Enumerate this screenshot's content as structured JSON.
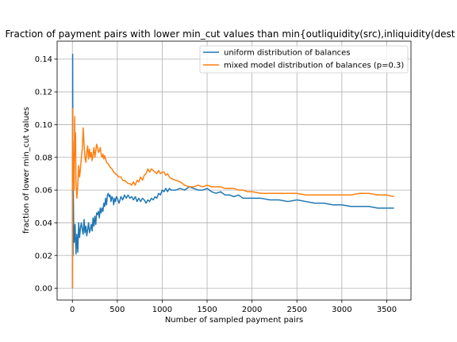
{
  "chart_data": {
    "type": "line",
    "title": "Fraction of payment pairs with lower min_cut values than min{outliquidity(src),inliquidity(dest",
    "xlabel": "Number of sampled payment pairs",
    "ylabel": "fraction of lower min_cut values",
    "xlim": [
      -170,
      3770
    ],
    "ylim": [
      -0.0072,
      0.151
    ],
    "xticks": [
      0,
      500,
      1000,
      1500,
      2000,
      2500,
      3000,
      3500
    ],
    "xtick_labels": [
      "0",
      "500",
      "1000",
      "1500",
      "2000",
      "2500",
      "3000",
      "3500"
    ],
    "yticks": [
      0.0,
      0.02,
      0.04,
      0.06,
      0.08,
      0.1,
      0.12,
      0.14
    ],
    "ytick_labels": [
      "0.00",
      "0.02",
      "0.04",
      "0.06",
      "0.08",
      "0.10",
      "0.12",
      "0.14"
    ],
    "grid": true,
    "legend_position": "top-right",
    "series": [
      {
        "name": "uniform distribution of balances",
        "color": "#1f77b4",
        "x": [
          1,
          3,
          5,
          7,
          10,
          14,
          20,
          30,
          40,
          50,
          60,
          70,
          80,
          90,
          100,
          110,
          120,
          130,
          140,
          150,
          160,
          170,
          180,
          190,
          200,
          210,
          220,
          230,
          240,
          250,
          260,
          270,
          280,
          290,
          300,
          310,
          320,
          330,
          340,
          350,
          360,
          370,
          380,
          390,
          400,
          410,
          420,
          430,
          440,
          450,
          460,
          470,
          480,
          490,
          500,
          520,
          540,
          560,
          580,
          600,
          620,
          640,
          660,
          680,
          700,
          720,
          740,
          760,
          780,
          800,
          820,
          840,
          860,
          880,
          900,
          920,
          940,
          960,
          980,
          1000,
          1020,
          1040,
          1060,
          1080,
          1100,
          1150,
          1200,
          1250,
          1300,
          1350,
          1400,
          1450,
          1500,
          1550,
          1600,
          1650,
          1700,
          1750,
          1800,
          1850,
          1900,
          1950,
          2000,
          2100,
          2200,
          2300,
          2400,
          2500,
          2600,
          2700,
          2800,
          2900,
          3000,
          3100,
          3200,
          3300,
          3400,
          3500,
          3580
        ],
        "y": [
          0.0,
          0.143,
          0.083,
          0.02,
          0.06,
          0.04,
          0.028,
          0.039,
          0.021,
          0.033,
          0.022,
          0.04,
          0.031,
          0.037,
          0.04,
          0.036,
          0.033,
          0.042,
          0.034,
          0.038,
          0.032,
          0.036,
          0.04,
          0.034,
          0.036,
          0.039,
          0.035,
          0.043,
          0.038,
          0.044,
          0.039,
          0.046,
          0.045,
          0.047,
          0.043,
          0.049,
          0.046,
          0.049,
          0.047,
          0.052,
          0.05,
          0.055,
          0.051,
          0.057,
          0.058,
          0.056,
          0.057,
          0.053,
          0.056,
          0.055,
          0.051,
          0.055,
          0.053,
          0.056,
          0.055,
          0.052,
          0.056,
          0.054,
          0.057,
          0.055,
          0.057,
          0.055,
          0.056,
          0.054,
          0.056,
          0.053,
          0.055,
          0.053,
          0.055,
          0.054,
          0.052,
          0.054,
          0.053,
          0.055,
          0.054,
          0.056,
          0.055,
          0.058,
          0.057,
          0.06,
          0.059,
          0.061,
          0.059,
          0.061,
          0.06,
          0.06,
          0.061,
          0.06,
          0.062,
          0.061,
          0.06,
          0.06,
          0.061,
          0.059,
          0.058,
          0.059,
          0.057,
          0.057,
          0.056,
          0.057,
          0.055,
          0.055,
          0.055,
          0.055,
          0.054,
          0.054,
          0.053,
          0.054,
          0.053,
          0.052,
          0.052,
          0.051,
          0.051,
          0.05,
          0.05,
          0.05,
          0.049,
          0.049,
          0.049
        ]
      },
      {
        "name": "mixed model distribution of balances (p=0.3)",
        "color": "#ff7f0e",
        "x": [
          1,
          3,
          5,
          7,
          10,
          14,
          20,
          25,
          30,
          35,
          40,
          50,
          60,
          70,
          80,
          90,
          100,
          110,
          120,
          130,
          140,
          150,
          160,
          170,
          180,
          190,
          200,
          210,
          220,
          230,
          240,
          250,
          260,
          270,
          280,
          290,
          300,
          310,
          320,
          330,
          340,
          350,
          360,
          380,
          400,
          420,
          440,
          460,
          480,
          500,
          520,
          540,
          560,
          580,
          600,
          620,
          640,
          660,
          680,
          700,
          720,
          740,
          760,
          780,
          800,
          820,
          840,
          860,
          880,
          900,
          920,
          940,
          960,
          980,
          1000,
          1020,
          1040,
          1060,
          1080,
          1100,
          1150,
          1200,
          1250,
          1300,
          1350,
          1400,
          1450,
          1500,
          1550,
          1600,
          1650,
          1700,
          1750,
          1800,
          1850,
          1900,
          1950,
          2000,
          2100,
          2200,
          2300,
          2400,
          2500,
          2600,
          2700,
          2800,
          2900,
          3000,
          3100,
          3200,
          3300,
          3400,
          3500,
          3580
        ],
        "y": [
          0.0,
          0.11,
          0.06,
          0.09,
          0.07,
          0.083,
          0.06,
          0.105,
          0.08,
          0.095,
          0.065,
          0.055,
          0.063,
          0.075,
          0.068,
          0.073,
          0.08,
          0.085,
          0.098,
          0.088,
          0.08,
          0.077,
          0.083,
          0.087,
          0.079,
          0.085,
          0.08,
          0.083,
          0.078,
          0.082,
          0.086,
          0.08,
          0.084,
          0.088,
          0.086,
          0.083,
          0.084,
          0.086,
          0.082,
          0.08,
          0.082,
          0.079,
          0.081,
          0.077,
          0.076,
          0.074,
          0.073,
          0.071,
          0.07,
          0.069,
          0.068,
          0.068,
          0.066,
          0.066,
          0.065,
          0.064,
          0.064,
          0.063,
          0.065,
          0.063,
          0.066,
          0.065,
          0.068,
          0.066,
          0.069,
          0.07,
          0.073,
          0.071,
          0.073,
          0.072,
          0.071,
          0.07,
          0.072,
          0.07,
          0.071,
          0.071,
          0.069,
          0.07,
          0.068,
          0.067,
          0.066,
          0.065,
          0.063,
          0.062,
          0.062,
          0.063,
          0.062,
          0.063,
          0.062,
          0.062,
          0.062,
          0.061,
          0.061,
          0.061,
          0.06,
          0.06,
          0.059,
          0.059,
          0.058,
          0.058,
          0.058,
          0.058,
          0.058,
          0.057,
          0.057,
          0.057,
          0.057,
          0.057,
          0.057,
          0.058,
          0.058,
          0.057,
          0.057,
          0.056
        ]
      }
    ]
  }
}
